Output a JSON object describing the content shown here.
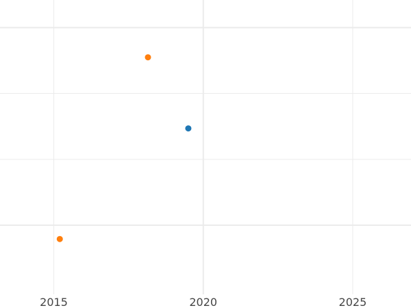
{
  "chart_data": {
    "type": "scatter",
    "title": "",
    "xlabel": "",
    "ylabel": "",
    "xlim": [
      2013.2,
      2026.95
    ],
    "ylim": [
      -0.35,
      1.14
    ],
    "x_ticks": [
      2015,
      2020,
      2025
    ],
    "x_tick_labels": [
      "2015",
      "2020",
      "2025"
    ],
    "y_gridlines": [
      0,
      0.333,
      0.667,
      1
    ],
    "y_major_gridlines": [
      0,
      1
    ],
    "x_major_gridlines": [
      2020
    ],
    "grid": true,
    "legend": "none",
    "points": [
      {
        "x": 2018.15,
        "y": 0.85,
        "color": "#ff7f0e"
      },
      {
        "x": 2019.5,
        "y": 0.49,
        "color": "#1f77b4"
      },
      {
        "x": 2015.2,
        "y": -0.07,
        "color": "#ff7f0e"
      }
    ],
    "colors": {
      "grid": "#ebebeb",
      "text": "#444444"
    }
  }
}
